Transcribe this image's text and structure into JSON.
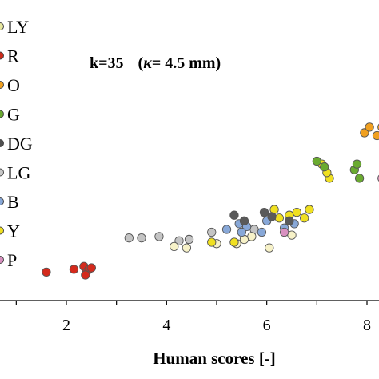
{
  "chart_data": {
    "type": "scatter",
    "title": "",
    "annotation": {
      "k": "k=35",
      "kappa_open": "(",
      "kappa_symbol": "κ",
      "kappa_value": "= 4.5 mm)"
    },
    "xlabel": "Human scores [-]",
    "ylabel": "",
    "xlim": [
      0.9,
      8.35
    ],
    "ylim": [
      0,
      1
    ],
    "grid": false,
    "legend_position": "left, partially cropped",
    "x_ticks": [
      {
        "value": 2,
        "label": "2"
      },
      {
        "value": 4,
        "label": "4"
      },
      {
        "value": 6,
        "label": "6"
      },
      {
        "value": 8,
        "label": "8"
      }
    ],
    "legend": [
      {
        "label": "LY",
        "color": "#e8e8a0"
      },
      {
        "label": "R",
        "color": "#cc2a1a"
      },
      {
        "label": "O",
        "color": "#f0a020"
      },
      {
        "label": "G",
        "color": "#6aaa30"
      },
      {
        "label": "DG",
        "color": "#505050"
      },
      {
        "label": "LG",
        "color": "#c8c8c8"
      },
      {
        "label": "B",
        "color": "#88a8d8"
      },
      {
        "label": "Y",
        "color": "#f0e020"
      },
      {
        "label": "P",
        "color": "#d890c0"
      }
    ],
    "series": [
      {
        "name": "R",
        "color": "#d42a1c",
        "points": [
          [
            1.6,
            0.1
          ],
          [
            2.15,
            0.11
          ],
          [
            2.35,
            0.12
          ],
          [
            2.4,
            0.1
          ],
          [
            2.45,
            0.11
          ],
          [
            2.5,
            0.115
          ],
          [
            2.38,
            0.09
          ]
        ]
      },
      {
        "name": "LG",
        "color": "#c4c4c4",
        "points": [
          [
            3.25,
            0.22
          ],
          [
            3.5,
            0.22
          ],
          [
            3.85,
            0.225
          ],
          [
            4.25,
            0.21
          ],
          [
            4.45,
            0.215
          ],
          [
            4.9,
            0.24
          ],
          [
            5.75,
            0.25
          ]
        ]
      },
      {
        "name": "LY",
        "color": "#f7f2c8",
        "points": [
          [
            4.15,
            0.19
          ],
          [
            4.4,
            0.185
          ],
          [
            5.4,
            0.2
          ],
          [
            5.55,
            0.215
          ],
          [
            5.7,
            0.225
          ],
          [
            6.05,
            0.185
          ],
          [
            6.5,
            0.23
          ],
          [
            5.0,
            0.2
          ]
        ]
      },
      {
        "name": "Y",
        "color": "#f0e020",
        "points": [
          [
            4.9,
            0.205
          ],
          [
            5.35,
            0.205
          ],
          [
            6.15,
            0.32
          ],
          [
            6.25,
            0.29
          ],
          [
            6.45,
            0.3
          ],
          [
            6.6,
            0.31
          ],
          [
            6.75,
            0.29
          ],
          [
            6.85,
            0.32
          ],
          [
            7.25,
            0.43
          ],
          [
            7.2,
            0.45
          ],
          [
            7.1,
            0.48
          ]
        ]
      },
      {
        "name": "B",
        "color": "#88a8d8",
        "points": [
          [
            5.2,
            0.25
          ],
          [
            5.45,
            0.27
          ],
          [
            5.6,
            0.26
          ],
          [
            5.9,
            0.24
          ],
          [
            6.0,
            0.28
          ],
          [
            6.35,
            0.255
          ],
          [
            6.55,
            0.27
          ],
          [
            5.5,
            0.24
          ]
        ]
      },
      {
        "name": "DG",
        "color": "#5a5a5a",
        "points": [
          [
            5.35,
            0.3
          ],
          [
            5.55,
            0.28
          ],
          [
            5.95,
            0.31
          ],
          [
            6.1,
            0.295
          ],
          [
            6.45,
            0.28
          ]
        ]
      },
      {
        "name": "P",
        "color": "#d890c0",
        "points": [
          [
            6.35,
            0.24
          ],
          [
            8.3,
            0.43
          ]
        ]
      },
      {
        "name": "G",
        "color": "#6aaa30",
        "points": [
          [
            7.0,
            0.49
          ],
          [
            7.15,
            0.47
          ],
          [
            7.75,
            0.46
          ],
          [
            7.85,
            0.43
          ],
          [
            7.8,
            0.48
          ]
        ]
      },
      {
        "name": "O",
        "color": "#f0a020",
        "points": [
          [
            7.95,
            0.59
          ],
          [
            8.05,
            0.61
          ],
          [
            8.2,
            0.58
          ],
          [
            8.3,
            0.61
          ]
        ]
      }
    ]
  }
}
